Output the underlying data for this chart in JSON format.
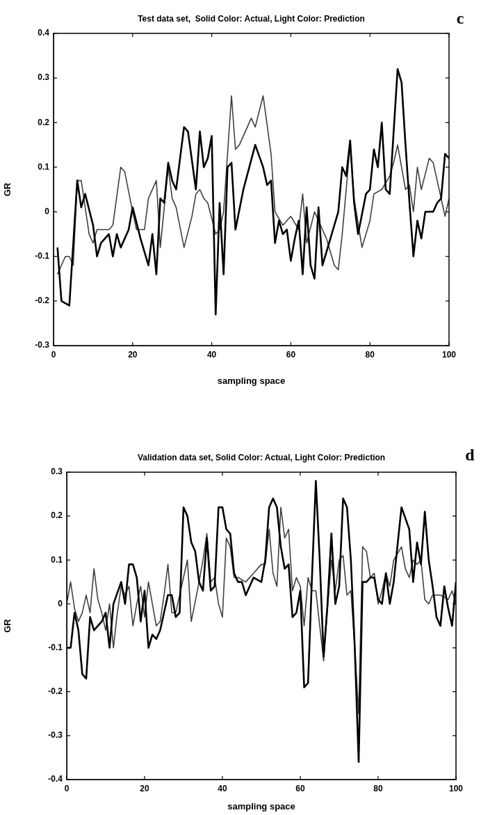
{
  "chart_data": [
    {
      "type": "line",
      "title": "Test data set,  Solid Color: Actual, Light Color: Prediction",
      "xlabel": "sampling space",
      "ylabel": "GR",
      "annotations": [
        "c"
      ],
      "xlim": [
        0,
        100
      ],
      "ylim": [
        -0.3,
        0.4
      ],
      "xticks": [
        0,
        20,
        40,
        60,
        80,
        100
      ],
      "yticks": [
        -0.3,
        -0.2,
        -0.1,
        0,
        0.1,
        0.2,
        0.3,
        0.4
      ],
      "marker": "none",
      "series": [
        {
          "color": "#000000",
          "x": [
            1,
            2,
            4,
            6,
            7,
            8,
            10,
            11,
            12,
            14,
            15,
            16,
            17,
            19,
            20,
            22,
            24,
            25,
            26,
            27,
            28,
            29,
            30,
            31,
            32,
            33,
            34,
            36,
            37,
            38,
            39,
            40,
            41,
            42,
            43,
            44,
            45,
            46,
            48,
            51,
            53,
            54,
            55,
            56,
            57,
            58,
            59,
            60,
            61,
            62,
            63,
            64,
            65,
            66,
            67,
            68,
            69,
            70,
            72,
            73,
            74,
            75,
            76,
            77,
            79,
            80,
            81,
            82,
            83,
            84,
            85,
            87,
            88,
            89,
            90,
            91,
            92,
            93,
            94,
            96,
            97,
            98,
            99,
            100
          ],
          "values": [
            -0.08,
            -0.2,
            -0.21,
            0.07,
            0.01,
            0.04,
            -0.03,
            -0.1,
            -0.07,
            -0.05,
            -0.1,
            -0.05,
            -0.08,
            -0.04,
            0.01,
            -0.06,
            -0.12,
            -0.05,
            -0.14,
            0.03,
            0.02,
            0.11,
            0.07,
            0.05,
            0.12,
            0.19,
            0.18,
            0.05,
            0.18,
            0.1,
            0.12,
            0.17,
            -0.23,
            0.02,
            -0.14,
            0.1,
            0.11,
            -0.04,
            0.05,
            0.15,
            0.1,
            0.06,
            0.07,
            -0.07,
            -0.02,
            -0.05,
            -0.04,
            -0.11,
            -0.06,
            -0.02,
            -0.14,
            0.01,
            -0.12,
            -0.15,
            0.01,
            -0.12,
            -0.09,
            -0.06,
            0.0,
            0.1,
            0.08,
            0.16,
            0.02,
            -0.05,
            0.04,
            0.05,
            0.14,
            0.1,
            0.2,
            0.05,
            0.04,
            0.32,
            0.29,
            0.15,
            0.02,
            -0.1,
            -0.02,
            -0.06,
            0.0,
            0.0,
            0.02,
            0.03,
            0.13,
            0.12
          ]
        },
        {
          "color": "#404040",
          "x": [
            1,
            3,
            4,
            5,
            6,
            7,
            9,
            10,
            11,
            14,
            15,
            17,
            18,
            20,
            21,
            23,
            24,
            26,
            27,
            29,
            30,
            31,
            33,
            35,
            36,
            37,
            38,
            39,
            41,
            42,
            43,
            45,
            46,
            47,
            50,
            51,
            53,
            55,
            56,
            58,
            60,
            62,
            63,
            64,
            66,
            68,
            69,
            71,
            72,
            73,
            75,
            76,
            78,
            80,
            81,
            83,
            85,
            86,
            87,
            89,
            90,
            91,
            92,
            93,
            95,
            96,
            99,
            100
          ],
          "values": [
            -0.14,
            -0.1,
            -0.1,
            -0.12,
            0.07,
            0.07,
            -0.05,
            -0.07,
            -0.04,
            -0.04,
            -0.03,
            0.1,
            0.09,
            0.0,
            -0.04,
            -0.04,
            0.03,
            0.07,
            -0.08,
            0.1,
            0.03,
            0.01,
            -0.08,
            -0.01,
            0.04,
            0.05,
            0.03,
            0.02,
            -0.05,
            -0.04,
            0.0,
            0.26,
            0.14,
            0.15,
            0.21,
            0.19,
            0.26,
            0.13,
            0.0,
            -0.03,
            -0.01,
            -0.04,
            0.04,
            -0.07,
            0.0,
            -0.04,
            -0.06,
            -0.12,
            -0.13,
            -0.05,
            0.15,
            0.03,
            -0.08,
            -0.02,
            0.04,
            0.05,
            0.08,
            0.11,
            0.15,
            0.05,
            0.06,
            0.0,
            0.1,
            0.05,
            0.12,
            0.11,
            -0.01,
            0.03
          ]
        }
      ]
    },
    {
      "type": "line",
      "title": "Validation data set, Solid Color: Actual, Light Color: Prediction",
      "xlabel": "sampling space",
      "ylabel": "GR",
      "annotations": [
        "d"
      ],
      "xlim": [
        0,
        100
      ],
      "ylim": [
        -0.4,
        0.3
      ],
      "xticks": [
        0,
        20,
        40,
        60,
        80,
        100
      ],
      "yticks": [
        -0.4,
        -0.3,
        -0.2,
        -0.1,
        0,
        0.1,
        0.2,
        0.3
      ],
      "marker": "none",
      "series": [
        {
          "color": "#000000",
          "x": [
            0,
            1,
            2,
            3,
            4,
            5,
            6,
            7,
            9,
            10,
            11,
            12,
            14,
            15,
            16,
            17,
            18,
            19,
            20,
            21,
            22,
            23,
            24,
            26,
            27,
            28,
            29,
            30,
            31,
            32,
            33,
            34,
            35,
            36,
            37,
            38,
            39,
            40,
            41,
            42,
            43,
            44,
            45,
            46,
            48,
            50,
            51,
            52,
            53,
            54,
            55,
            56,
            57,
            58,
            59,
            60,
            61,
            62,
            63,
            64,
            65,
            66,
            67,
            68,
            69,
            70,
            71,
            72,
            73,
            74,
            75,
            76,
            77,
            78,
            79,
            80,
            81,
            82,
            83,
            84,
            86,
            88,
            89,
            90,
            91,
            92,
            93,
            94,
            95,
            96,
            97,
            98,
            99,
            100
          ],
          "values": [
            -0.1,
            -0.1,
            -0.02,
            -0.06,
            -0.16,
            -0.17,
            -0.03,
            -0.06,
            -0.04,
            -0.02,
            -0.1,
            0.0,
            0.05,
            0.0,
            0.09,
            0.09,
            0.06,
            -0.04,
            0.03,
            -0.1,
            -0.07,
            -0.08,
            -0.06,
            0.02,
            0.02,
            -0.03,
            -0.02,
            0.22,
            0.2,
            0.14,
            0.12,
            0.05,
            0.03,
            0.15,
            0.03,
            0.04,
            0.22,
            0.22,
            0.17,
            0.16,
            0.07,
            0.05,
            0.05,
            0.02,
            0.06,
            0.05,
            0.1,
            0.22,
            0.24,
            0.22,
            0.13,
            0.08,
            0.09,
            -0.03,
            -0.02,
            0.03,
            -0.19,
            -0.18,
            0.06,
            0.28,
            0.1,
            -0.12,
            0.0,
            0.16,
            0.0,
            0.04,
            0.24,
            0.22,
            0.1,
            -0.1,
            -0.36,
            0.05,
            0.05,
            0.06,
            0.06,
            0.01,
            0.0,
            0.07,
            0.0,
            0.05,
            0.22,
            0.17,
            0.05,
            0.14,
            0.09,
            0.21,
            0.1,
            0.04,
            -0.03,
            -0.05,
            0.04,
            -0.01,
            -0.05,
            0.05
          ]
        },
        {
          "color": "#404040",
          "x": [
            0,
            1,
            2,
            3,
            4,
            5,
            6,
            7,
            8,
            9,
            10,
            11,
            12,
            13,
            14,
            15,
            16,
            17,
            18,
            19,
            20,
            21,
            22,
            23,
            24,
            25,
            26,
            27,
            28,
            29,
            30,
            31,
            32,
            34,
            35,
            36,
            37,
            38,
            39,
            40,
            41,
            42,
            43,
            44,
            46,
            48,
            50,
            51,
            52,
            53,
            54,
            55,
            56,
            57,
            58,
            59,
            60,
            61,
            62,
            63,
            64,
            65,
            66,
            67,
            68,
            69,
            70,
            71,
            72,
            73,
            74,
            75,
            76,
            77,
            78,
            79,
            80,
            81,
            82,
            83,
            84,
            86,
            87,
            88,
            89,
            90,
            91,
            92,
            93,
            94,
            96,
            98,
            99,
            100
          ],
          "values": [
            0.0,
            0.05,
            -0.01,
            -0.04,
            -0.02,
            0.02,
            -0.02,
            0.08,
            0.01,
            -0.02,
            -0.06,
            0.0,
            -0.1,
            -0.02,
            0.04,
            0.02,
            0.04,
            -0.05,
            0.0,
            0.04,
            -0.03,
            0.05,
            0.0,
            -0.05,
            -0.04,
            0.02,
            0.09,
            -0.02,
            -0.02,
            0.02,
            0.06,
            0.1,
            -0.04,
            0.05,
            0.1,
            0.16,
            0.05,
            0.06,
            0.0,
            -0.03,
            0.15,
            0.13,
            0.06,
            0.06,
            0.05,
            0.07,
            0.09,
            0.09,
            0.17,
            0.07,
            0.04,
            0.22,
            0.15,
            0.17,
            0.03,
            0.06,
            0.04,
            -0.05,
            0.06,
            0.03,
            0.03,
            -0.05,
            -0.13,
            -0.01,
            0.1,
            0.03,
            0.1,
            0.11,
            0.02,
            0.03,
            -0.1,
            -0.25,
            0.13,
            0.12,
            0.06,
            0.07,
            0.0,
            0.03,
            0.07,
            0.04,
            0.1,
            0.13,
            0.08,
            0.06,
            0.1,
            0.09,
            0.1,
            0.01,
            0.0,
            0.02,
            0.02,
            0.01,
            0.03,
            0.0
          ]
        }
      ]
    }
  ]
}
